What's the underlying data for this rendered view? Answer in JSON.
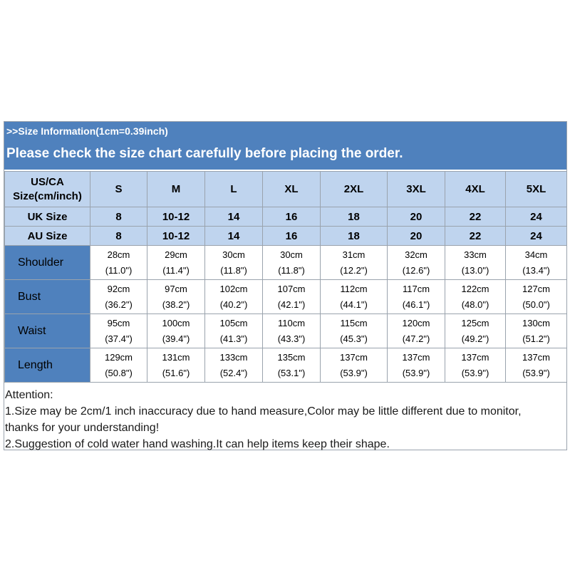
{
  "banner": {
    "subtitle": ">>Size Information(1cm=0.39inch)",
    "headline": "Please check the size chart carefully before placing the order.",
    "color": "#4f81bd"
  },
  "table": {
    "header_color": "#bfd4ee",
    "corner_label_line1": "US/CA",
    "corner_label_line2": "Size(cm/inch)",
    "sizes": [
      "S",
      "M",
      "L",
      "XL",
      "2XL",
      "3XL",
      "4XL",
      "5XL"
    ],
    "uk": {
      "label": "UK Size",
      "values": [
        "8",
        "10-12",
        "14",
        "16",
        "18",
        "20",
        "22",
        "24"
      ]
    },
    "au": {
      "label": "AU Size",
      "values": [
        "8",
        "10-12",
        "14",
        "16",
        "18",
        "20",
        "22",
        "24"
      ]
    },
    "rows": [
      {
        "label": "Shoulder",
        "cm": [
          "28cm",
          "29cm",
          "30cm",
          "30cm",
          "31cm",
          "32cm",
          "33cm",
          "34cm"
        ],
        "inch": [
          "(11.0\")",
          "(11.4\")",
          "(11.8\")",
          "(11.8\")",
          "(12.2\")",
          "(12.6\")",
          "(13.0\")",
          "(13.4\")"
        ]
      },
      {
        "label": "Bust",
        "cm": [
          "92cm",
          "97cm",
          "102cm",
          "107cm",
          "112cm",
          "117cm",
          "122cm",
          "127cm"
        ],
        "inch": [
          "(36.2\")",
          "(38.2\")",
          "(40.2\")",
          "(42.1\")",
          "(44.1\")",
          "(46.1\")",
          "(48.0\")",
          "(50.0\")"
        ]
      },
      {
        "label": "Waist",
        "cm": [
          "95cm",
          "100cm",
          "105cm",
          "110cm",
          "115cm",
          "120cm",
          "125cm",
          "130cm"
        ],
        "inch": [
          "(37.4\")",
          "(39.4\")",
          "(41.3\")",
          "(43.3\")",
          "(45.3\")",
          "(47.2\")",
          "(49.2\")",
          "(51.2\")"
        ]
      },
      {
        "label": "Length",
        "cm": [
          "129cm",
          "131cm",
          "133cm",
          "135cm",
          "137cm",
          "137cm",
          "137cm",
          "137cm"
        ],
        "inch": [
          "(50.8\")",
          "(51.6\")",
          "(52.4\")",
          "(53.1\")",
          "(53.9\")",
          "(53.9\")",
          "(53.9\")",
          "(53.9\")"
        ]
      }
    ]
  },
  "notes": {
    "title": "Attention:",
    "line1": "1.Size may be 2cm/1 inch inaccuracy due to hand measure,Color may be little different due to monitor,",
    "line2": "thanks for your understanding!",
    "line3": "2.Suggestion of cold water hand washing.It can help items keep their shape."
  }
}
